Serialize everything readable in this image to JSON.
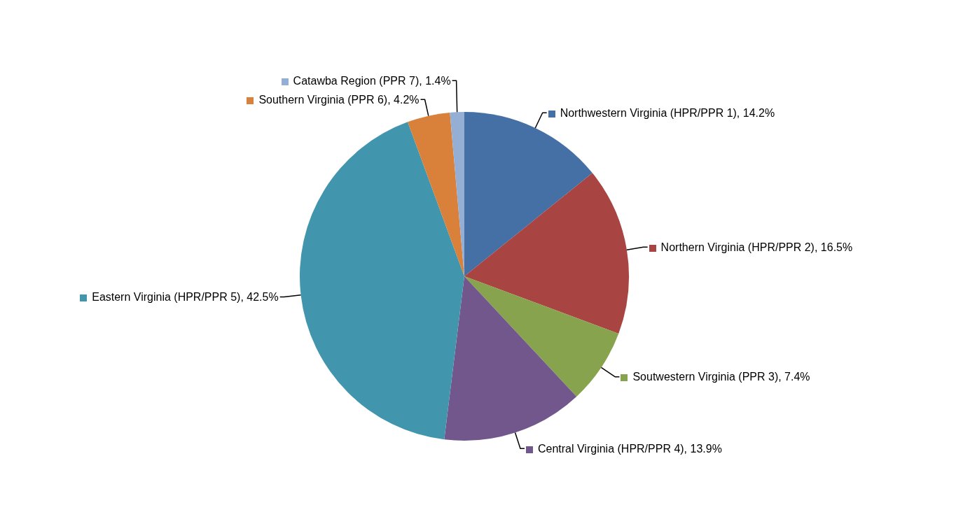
{
  "chart_data": {
    "type": "pie",
    "categories": [
      "Northwestern Virginia (HPR/PPR 1)",
      "Northern Virginia (HPR/PPR 2)",
      "Soutwestern Virginia (PPR 3)",
      "Central Virginia (HPR/PPR 4)",
      "Eastern Virginia (HPR/PPR 5)",
      "Southern Virginia (PPR 6)",
      "Catawba Region (PPR 7)"
    ],
    "values": [
      14.2,
      16.5,
      7.4,
      13.9,
      42.5,
      4.2,
      1.4
    ],
    "colors": [
      "#4470a6",
      "#a84442",
      "#87a34d",
      "#71578c",
      "#4195ac",
      "#d9803b",
      "#95aed4"
    ],
    "value_labels": [
      "14.2%",
      "16.5%",
      "7.4%",
      "13.9%",
      "42.5%",
      "4.2%",
      "1.4%"
    ],
    "legend": "right"
  }
}
